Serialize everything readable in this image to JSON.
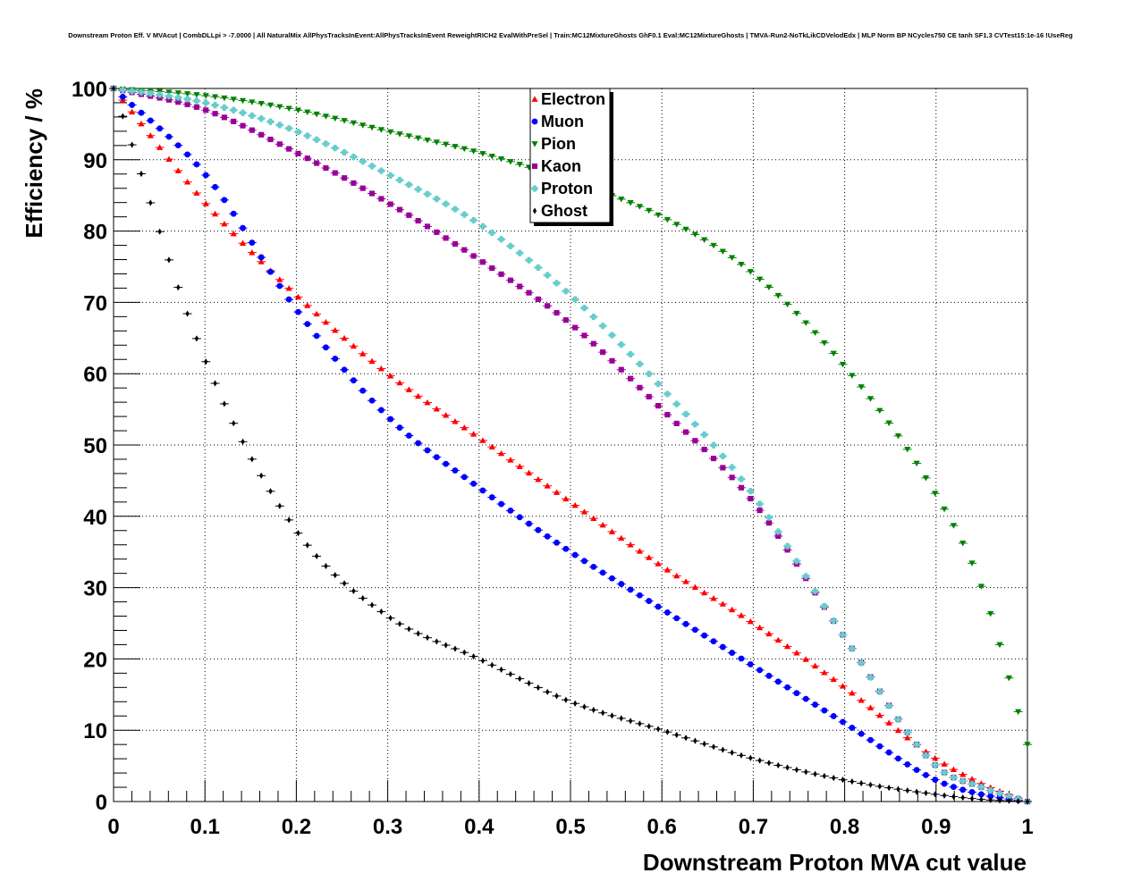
{
  "chart_data": {
    "type": "scatter",
    "title": "Downstream Proton Eff. V MVAcut | CombDLLpi > -7.0000 | All NaturalMix AllPhysTracksInEvent:AllPhysTracksInEvent ReweightRICH2 EvalWithPreSel | Train:MC12MixtureGhosts GhF0.1 Eval:MC12MixtureGhosts | TMVA-Run2-NoTkLikCDVelodEdx | MLP Norm BP NCycles750 CE tanh SF1.3 CVTest15:1e-16 !UseReg",
    "xlabel": "Downstream Proton MVA cut value",
    "ylabel": "Efficiency / %",
    "xlim": [
      0,
      1
    ],
    "ylim": [
      0,
      100
    ],
    "xticks": [
      "0",
      "0.1",
      "0.2",
      "0.3",
      "0.4",
      "0.5",
      "0.6",
      "0.7",
      "0.8",
      "0.9",
      "1"
    ],
    "yticks": [
      "0",
      "10",
      "20",
      "30",
      "40",
      "50",
      "60",
      "70",
      "80",
      "90",
      "100"
    ],
    "grid": true,
    "legend_position": "top-center",
    "x": [
      0.0,
      0.1,
      0.2,
      0.3,
      0.4,
      0.5,
      0.6,
      0.7,
      0.8,
      0.9,
      0.95,
      1.0
    ],
    "series": [
      {
        "name": "Electron",
        "color": "#ff0000",
        "marker": "triangle-up",
        "values": [
          100,
          84,
          71,
          60,
          51,
          42,
          33,
          25,
          16,
          6,
          2.5,
          0
        ]
      },
      {
        "name": "Muon",
        "color": "#0000ff",
        "marker": "circle",
        "values": [
          100,
          88,
          69,
          54,
          44,
          35,
          27,
          19,
          11,
          3,
          1,
          0
        ]
      },
      {
        "name": "Pion",
        "color": "#008000",
        "marker": "triangle-down",
        "values": [
          100,
          99,
          97,
          94,
          91,
          87,
          82,
          74,
          61,
          43,
          30,
          8
        ]
      },
      {
        "name": "Kaon",
        "color": "#990099",
        "marker": "square",
        "values": [
          100,
          97,
          91,
          84,
          76,
          67,
          55,
          42,
          23,
          5,
          2,
          0
        ]
      },
      {
        "name": "Proton",
        "color": "#66cccc",
        "marker": "cross",
        "values": [
          100,
          98,
          94,
          88,
          81,
          71,
          58,
          43,
          23,
          5,
          2,
          0
        ]
      },
      {
        "name": "Ghost",
        "color": "#000000",
        "marker": "diamond",
        "values": [
          100,
          62,
          38,
          26,
          20,
          14,
          10,
          6,
          3,
          1,
          0.3,
          0
        ]
      }
    ]
  }
}
